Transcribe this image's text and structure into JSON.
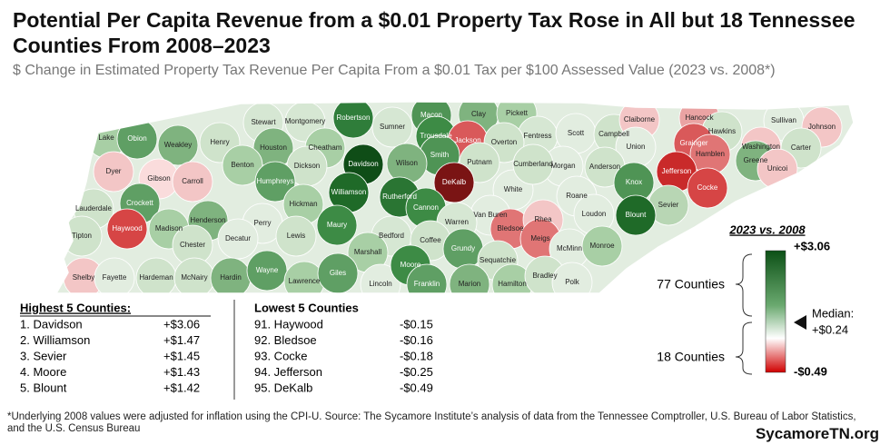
{
  "header": {
    "title": "Potential Per Capita Revenue from a $0.01 Property Tax Rose in All but 18 Tennessee Counties From 2008–2023",
    "subtitle": "$ Change in Estimated Property Tax Revenue Per Capita From a $0.01 Tax per $100 Assessed Value (2023 vs. 2008*)"
  },
  "map": {
    "counties": [
      {
        "name": "Lake",
        "color": "#a8cfa5"
      },
      {
        "name": "Obion",
        "color": "#5f9f64"
      },
      {
        "name": "Weakley",
        "color": "#7fb37f"
      },
      {
        "name": "Henry",
        "color": "#cfe3cb"
      },
      {
        "name": "Stewart",
        "color": "#d6e7d3"
      },
      {
        "name": "Montgomery",
        "color": "#d6e7d3"
      },
      {
        "name": "Robertson",
        "color": "#2f7d3a"
      },
      {
        "name": "Sumner",
        "color": "#d6e7d3"
      },
      {
        "name": "Macon",
        "color": "#4f9455"
      },
      {
        "name": "Clay",
        "color": "#7fb37f"
      },
      {
        "name": "Pickett",
        "color": "#a8cfa5"
      },
      {
        "name": "Fentress",
        "color": "#d6e7d3"
      },
      {
        "name": "Scott",
        "color": "#e2ede0"
      },
      {
        "name": "Campbell",
        "color": "#cfe3cb"
      },
      {
        "name": "Claiborne",
        "color": "#f3c6c6"
      },
      {
        "name": "Hancock",
        "color": "#eaa3a3"
      },
      {
        "name": "Sullivan",
        "color": "#e2ede0"
      },
      {
        "name": "Johnson",
        "color": "#f3c6c6"
      },
      {
        "name": "Trousdale",
        "color": "#3d8b45"
      },
      {
        "name": "Jackson",
        "color": "#d9595a"
      },
      {
        "name": "Overton",
        "color": "#cfe3cb"
      },
      {
        "name": "Hawkins",
        "color": "#cfe3cb"
      },
      {
        "name": "Houston",
        "color": "#7fb37f"
      },
      {
        "name": "Cheatham",
        "color": "#a8cfa5"
      },
      {
        "name": "Smith",
        "color": "#4f9455"
      },
      {
        "name": "Putnam",
        "color": "#cfe3cb"
      },
      {
        "name": "Union",
        "color": "#e2ede0"
      },
      {
        "name": "Grainger",
        "color": "#d9595a"
      },
      {
        "name": "Hamblen",
        "color": "#e07575"
      },
      {
        "name": "Washington",
        "color": "#f3c6c6"
      },
      {
        "name": "Carter",
        "color": "#cfe3cb"
      },
      {
        "name": "Dyer",
        "color": "#f3c6c6"
      },
      {
        "name": "Gibson",
        "color": "#fadcdc"
      },
      {
        "name": "Carroll",
        "color": "#f3c6c6"
      },
      {
        "name": "Benton",
        "color": "#a8cfa5"
      },
      {
        "name": "Dickson",
        "color": "#cfe3cb"
      },
      {
        "name": "Davidson",
        "color": "#0f4d17"
      },
      {
        "name": "Wilson",
        "color": "#7fb37f"
      },
      {
        "name": "Morgan",
        "color": "#e2ede0"
      },
      {
        "name": "Anderson",
        "color": "#cfe3cb"
      },
      {
        "name": "Jefferson",
        "color": "#c92a2a"
      },
      {
        "name": "Greene",
        "color": "#7fb37f"
      },
      {
        "name": "Unicoi",
        "color": "#f3c6c6"
      },
      {
        "name": "Humphreys",
        "color": "#5f9f64"
      },
      {
        "name": "DeKalb",
        "color": "#7a1414"
      },
      {
        "name": "White",
        "color": "#e2ede0"
      },
      {
        "name": "Cumberland",
        "color": "#cfe3cb"
      },
      {
        "name": "Knox",
        "color": "#4f9455"
      },
      {
        "name": "Cocke",
        "color": "#d64545"
      },
      {
        "name": "Williamson",
        "color": "#1f6a28"
      },
      {
        "name": "Rutherford",
        "color": "#2a7533"
      },
      {
        "name": "Roane",
        "color": "#e2ede0"
      },
      {
        "name": "Sevier",
        "color": "#b8d6b4"
      },
      {
        "name": "Blount",
        "color": "#1f6a28"
      },
      {
        "name": "Lauderdale",
        "color": "#cfe3cb"
      },
      {
        "name": "Crockett",
        "color": "#5f9f64"
      },
      {
        "name": "Hickman",
        "color": "#a8cfa5"
      },
      {
        "name": "Cannon",
        "color": "#3d8b45"
      },
      {
        "name": "Van Buren",
        "color": "#e2ede0"
      },
      {
        "name": "Loudon",
        "color": "#e2ede0"
      },
      {
        "name": "Henderson",
        "color": "#7fb37f"
      },
      {
        "name": "Haywood",
        "color": "#d64545"
      },
      {
        "name": "Madison",
        "color": "#a8cfa5"
      },
      {
        "name": "Perry",
        "color": "#e2ede0"
      },
      {
        "name": "Maury",
        "color": "#3d8b45"
      },
      {
        "name": "Warren",
        "color": "#d6e7d3"
      },
      {
        "name": "Bledsoe",
        "color": "#e07575"
      },
      {
        "name": "Rhea",
        "color": "#f3c6c6"
      },
      {
        "name": "Tipton",
        "color": "#cfe3cb"
      },
      {
        "name": "Decatur",
        "color": "#e2ede0"
      },
      {
        "name": "Lewis",
        "color": "#cfe3cb"
      },
      {
        "name": "Bedford",
        "color": "#d6e7d3"
      },
      {
        "name": "Coffee",
        "color": "#cfe3cb"
      },
      {
        "name": "Meigs",
        "color": "#e07575"
      },
      {
        "name": "McMinn",
        "color": "#e2ede0"
      },
      {
        "name": "Monroe",
        "color": "#a8cfa5"
      },
      {
        "name": "Chester",
        "color": "#cfe3cb"
      },
      {
        "name": "Marshall",
        "color": "#a8cfa5"
      },
      {
        "name": "Grundy",
        "color": "#5f9f64"
      },
      {
        "name": "Sequatchie",
        "color": "#cfe3cb"
      },
      {
        "name": "Shelby",
        "color": "#f3c6c6"
      },
      {
        "name": "Fayette",
        "color": "#e2ede0"
      },
      {
        "name": "Hardeman",
        "color": "#cfe3cb"
      },
      {
        "name": "McNairy",
        "color": "#cfe3cb"
      },
      {
        "name": "Hardin",
        "color": "#7fb37f"
      },
      {
        "name": "Wayne",
        "color": "#5f9f64"
      },
      {
        "name": "Lawrence",
        "color": "#a8cfa5"
      },
      {
        "name": "Giles",
        "color": "#5f9f64"
      },
      {
        "name": "Lincoln",
        "color": "#e2ede0"
      },
      {
        "name": "Moore",
        "color": "#3d8b45"
      },
      {
        "name": "Franklin",
        "color": "#5f9f64"
      },
      {
        "name": "Marion",
        "color": "#7fb37f"
      },
      {
        "name": "Hamilton",
        "color": "#a8cfa5"
      },
      {
        "name": "Bradley",
        "color": "#cfe3cb"
      },
      {
        "name": "Polk",
        "color": "#e2ede0"
      }
    ]
  },
  "legend": {
    "title": "2023 vs. 2008",
    "max_label": "+$3.06",
    "min_label": "-$0.49",
    "median_label": "Median:",
    "median_value": "+$0.24",
    "upper_group": "77 Counties",
    "lower_group": "18 Counties"
  },
  "tables": {
    "highest": {
      "title": "Highest 5 Counties:",
      "rows": [
        [
          "1. Davidson",
          "+$3.06"
        ],
        [
          "2. Williamson",
          "+$1.47"
        ],
        [
          "3. Sevier",
          "+$1.45"
        ],
        [
          "4. Moore",
          "+$1.43"
        ],
        [
          "5. Blount",
          "+$1.42"
        ]
      ]
    },
    "lowest": {
      "title": "Lowest 5 Counties",
      "rows": [
        [
          "91. Haywood",
          "-$0.15"
        ],
        [
          "92. Bledsoe",
          "-$0.16"
        ],
        [
          "93. Cocke",
          "-$0.18"
        ],
        [
          "94. Jefferson",
          "-$0.25"
        ],
        [
          "95. DeKalb",
          "-$0.49"
        ]
      ]
    }
  },
  "footnote": "*Underlying 2008 values were adjusted for inflation using the CPI-U. Source: The Sycamore Institute’s analysis of data from the Tennessee Comptroller, U.S. Bureau of Labor Statistics, and the U.S. Census Bureau",
  "brand": "SycamoreTN.org"
}
